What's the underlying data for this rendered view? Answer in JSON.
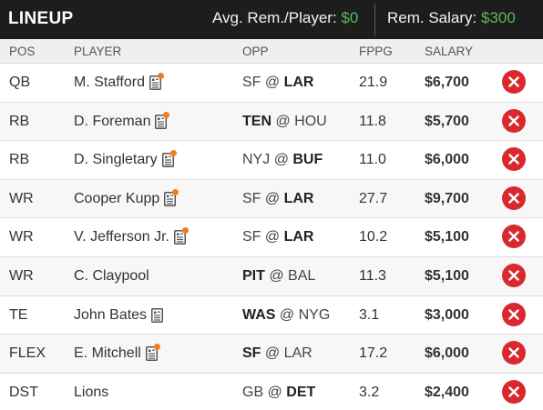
{
  "header": {
    "title": "LINEUP",
    "avg_label": "Avg. Rem./Player:",
    "avg_value": "$0",
    "rem_label": "Rem. Salary:",
    "rem_value": "$300",
    "value_color": "#5cb85c"
  },
  "columns": {
    "pos": "POS",
    "player": "PLAYER",
    "opp": "OPP",
    "fppg": "FPPG",
    "salary": "SALARY"
  },
  "rows": [
    {
      "pos": "QB",
      "player": "M. Stafford",
      "news_icon": true,
      "news_dot": true,
      "away": "SF",
      "home": "LAR",
      "bold": "home",
      "fppg": "21.9",
      "salary": "$6,700"
    },
    {
      "pos": "RB",
      "player": "D. Foreman",
      "news_icon": true,
      "news_dot": true,
      "away": "TEN",
      "home": "HOU",
      "bold": "away",
      "fppg": "11.8",
      "salary": "$5,700"
    },
    {
      "pos": "RB",
      "player": "D. Singletary",
      "news_icon": true,
      "news_dot": true,
      "away": "NYJ",
      "home": "BUF",
      "bold": "home",
      "fppg": "11.0",
      "salary": "$6,000"
    },
    {
      "pos": "WR",
      "player": "Cooper Kupp",
      "news_icon": true,
      "news_dot": true,
      "away": "SF",
      "home": "LAR",
      "bold": "home",
      "fppg": "27.7",
      "salary": "$9,700"
    },
    {
      "pos": "WR",
      "player": "V. Jefferson Jr.",
      "news_icon": true,
      "news_dot": true,
      "away": "SF",
      "home": "LAR",
      "bold": "home",
      "fppg": "10.2",
      "salary": "$5,100"
    },
    {
      "pos": "WR",
      "player": "C. Claypool",
      "news_icon": false,
      "news_dot": false,
      "away": "PIT",
      "home": "BAL",
      "bold": "away",
      "fppg": "11.3",
      "salary": "$5,100"
    },
    {
      "pos": "TE",
      "player": "John Bates",
      "news_icon": true,
      "news_dot": false,
      "away": "WAS",
      "home": "NYG",
      "bold": "away",
      "fppg": "3.1",
      "salary": "$3,000"
    },
    {
      "pos": "FLEX",
      "player": "E. Mitchell",
      "news_icon": true,
      "news_dot": true,
      "away": "SF",
      "home": "LAR",
      "bold": "away",
      "fppg": "17.2",
      "salary": "$6,000"
    },
    {
      "pos": "DST",
      "player": "Lions",
      "news_icon": false,
      "news_dot": false,
      "away": "GB",
      "home": "DET",
      "bold": "home",
      "fppg": "3.2",
      "salary": "$2,400"
    }
  ],
  "opp_separator": "@",
  "icons": {
    "news": "player-news-icon",
    "remove": "remove-player-icon"
  },
  "colors": {
    "header_bg": "#1d1d1d",
    "remove": "#d9292f",
    "news_dot": "#f07d1e"
  }
}
